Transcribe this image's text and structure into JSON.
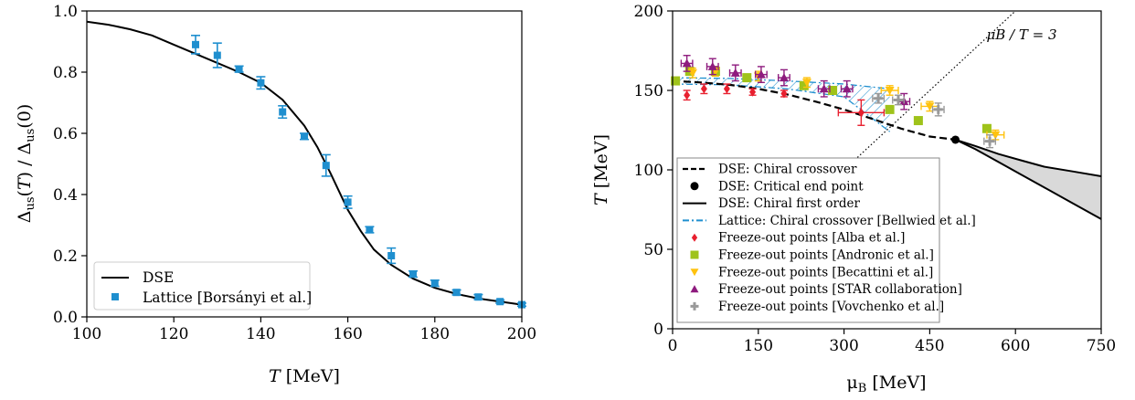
{
  "chart_data": [
    {
      "type": "line+scatter",
      "xlabel": "T [MeV]",
      "ylabel": "Δus(T) / Δus(0)",
      "xlim": [
        100,
        200
      ],
      "ylim": [
        0,
        1.0
      ],
      "xticks": [
        100,
        120,
        140,
        160,
        180,
        200
      ],
      "yticks": [
        0.0,
        0.2,
        0.4,
        0.6,
        0.8,
        1.0
      ],
      "xtick_labels": [
        "100",
        "120",
        "140",
        "160",
        "180",
        "200"
      ],
      "ytick_labels": [
        "0.0",
        "0.2",
        "0.4",
        "0.6",
        "0.8",
        "1.0"
      ],
      "legend_position": "bottom-left",
      "series": [
        {
          "name": "DSE",
          "kind": "line",
          "color": "#000000",
          "x": [
            100,
            105,
            110,
            115,
            120,
            125,
            130,
            135,
            140,
            145,
            150,
            153,
            156,
            158,
            160,
            163,
            166,
            170,
            175,
            180,
            185,
            190,
            195,
            200
          ],
          "y": [
            0.965,
            0.955,
            0.94,
            0.92,
            0.89,
            0.86,
            0.83,
            0.8,
            0.765,
            0.71,
            0.625,
            0.555,
            0.47,
            0.41,
            0.35,
            0.28,
            0.22,
            0.17,
            0.125,
            0.095,
            0.075,
            0.06,
            0.05,
            0.04
          ]
        },
        {
          "name": "Lattice [Borsányi et al.]",
          "kind": "scatter",
          "color": "#1f8fcf",
          "x": [
            125,
            130,
            135,
            140,
            145,
            150,
            155,
            160,
            165,
            170,
            175,
            180,
            185,
            190,
            195,
            200
          ],
          "y": [
            0.89,
            0.855,
            0.81,
            0.765,
            0.67,
            0.59,
            0.495,
            0.375,
            0.285,
            0.2,
            0.14,
            0.11,
            0.08,
            0.065,
            0.05,
            0.04
          ],
          "yerr": [
            0.03,
            0.04,
            0.01,
            0.02,
            0.02,
            0.01,
            0.035,
            0.02,
            0.01,
            0.025,
            0.01,
            0.01,
            0.008,
            0.008,
            0.005,
            0.005
          ]
        }
      ]
    },
    {
      "type": "phase-diagram",
      "xlabel": "μB [MeV]",
      "ylabel": "T [MeV]",
      "xlim": [
        0,
        750
      ],
      "ylim": [
        0,
        200
      ],
      "xticks": [
        0,
        150,
        300,
        450,
        600,
        750
      ],
      "yticks": [
        0,
        50,
        100,
        150,
        200
      ],
      "xtick_labels": [
        "0",
        "150",
        "300",
        "450",
        "600",
        "750"
      ],
      "ytick_labels": [
        "0",
        "50",
        "100",
        "150",
        "200"
      ],
      "annotation": "μB / T = 3",
      "legend_position": "bottom-left",
      "crossover": {
        "name": "DSE: Chiral crossover",
        "x": [
          0,
          50,
          100,
          150,
          200,
          250,
          300,
          350,
          400,
          450,
          495
        ],
        "y": [
          156,
          155,
          153.5,
          151,
          147.5,
          143,
          138,
          132,
          126,
          121,
          119
        ]
      },
      "cep": {
        "name": "DSE: Critical end point",
        "x": 495,
        "y": 119
      },
      "first_order": {
        "name": "DSE: Chiral first order",
        "x_upper": [
          495,
          530,
          570,
          610,
          650,
          700,
          750
        ],
        "y_upper": [
          119,
          115,
          110,
          106,
          102,
          99,
          96
        ],
        "x_lower": [
          495,
          530,
          570,
          610,
          650,
          700,
          750
        ],
        "y_lower": [
          119,
          113,
          105,
          97,
          89,
          79,
          69
        ]
      },
      "lattice": {
        "name": "Lattice: Chiral crossover [Bellwied et al.]",
        "x": [
          0,
          100,
          200,
          300,
          380
        ],
        "y_upper": [
          158,
          157.5,
          156,
          154,
          151
        ],
        "y_lower": [
          154,
          153.5,
          151,
          146,
          124
        ]
      },
      "freezeout": [
        {
          "name": "Freeze-out points [Alba et al.]",
          "marker": "diamond",
          "color": "#e8202f",
          "x": [
            25,
            55,
            95,
            140,
            195,
            330
          ],
          "y": [
            147,
            151,
            151,
            149,
            148,
            136
          ],
          "xerr": [
            0,
            0,
            0,
            0,
            0,
            40
          ],
          "yerr": [
            3,
            3,
            3,
            2,
            2,
            8
          ]
        },
        {
          "name": "Freeze-out points [Andronic et al.]",
          "marker": "square",
          "color": "#9fc31a",
          "x": [
            5,
            30,
            75,
            130,
            230,
            280,
            380,
            430,
            550
          ],
          "y": [
            156,
            162,
            162,
            158,
            153,
            150,
            138,
            131,
            126
          ],
          "xerr": [
            0,
            0,
            0,
            0,
            0,
            0,
            0,
            0,
            0
          ],
          "yerr": [
            2,
            2,
            2,
            2,
            2,
            2,
            2,
            2,
            2
          ]
        },
        {
          "name": "Freeze-out points [Becattini et al.]",
          "marker": "triangle-down",
          "color": "#ffc20e",
          "x": [
            35,
            75,
            150,
            235,
            380,
            450,
            565
          ],
          "y": [
            161,
            162,
            159,
            155,
            150,
            140,
            122
          ],
          "xerr": [
            0,
            0,
            0,
            0,
            15,
            15,
            15
          ],
          "yerr": [
            3,
            3,
            3,
            3,
            3,
            3,
            3
          ]
        },
        {
          "name": "Freeze-out points [STAR collaboration]",
          "marker": "triangle-up",
          "color": "#8e1b7e",
          "x": [
            25,
            70,
            110,
            155,
            195,
            265,
            305,
            405
          ],
          "y": [
            167,
            165,
            161,
            160,
            158,
            151,
            151,
            143
          ],
          "xerr": [
            10,
            10,
            10,
            10,
            10,
            10,
            10,
            10
          ],
          "yerr": [
            5,
            5,
            5,
            5,
            5,
            5,
            5,
            5
          ]
        },
        {
          "name": "Freeze-out points [Vovchenko et al.]",
          "marker": "plus",
          "color": "#999999",
          "x": [
            360,
            395,
            465,
            555
          ],
          "y": [
            145,
            144,
            138,
            118
          ],
          "xerr": [
            10,
            10,
            10,
            10
          ],
          "yerr": [
            3,
            3,
            4,
            4
          ]
        }
      ]
    }
  ]
}
